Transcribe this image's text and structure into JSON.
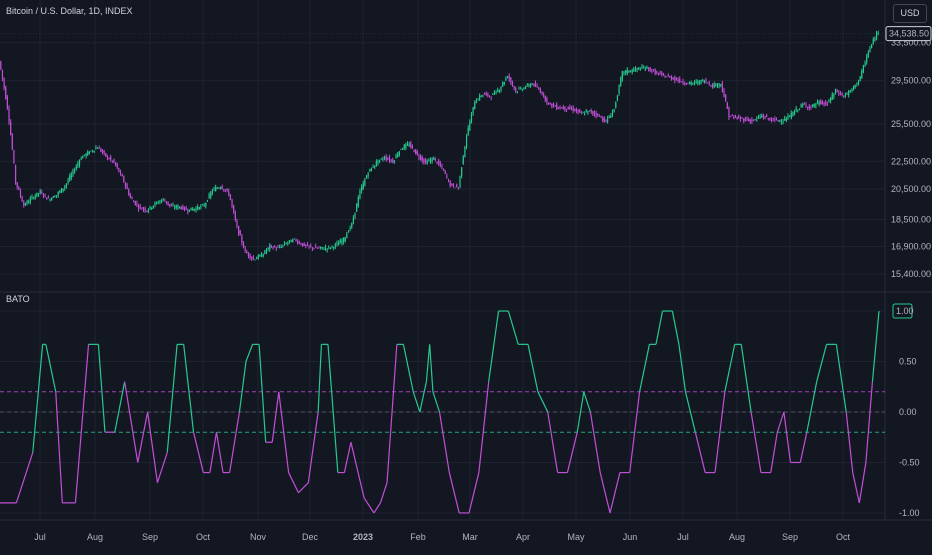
{
  "header": {
    "title": "Bitcoin / U.S. Dollar, 1D, INDEX",
    "currency_button": "USD"
  },
  "indicator": {
    "name": "BATO"
  },
  "colors": {
    "background": "#131722",
    "up": "#26c98f",
    "down": "#c24fd8",
    "grid": "#1f2330",
    "axis_text": "#b2b5be"
  },
  "chart_data": [
    {
      "type": "candlestick",
      "title": "Bitcoin / U.S. Dollar, 1D, INDEX",
      "y_axis_position": "right",
      "y_ticks": [
        "15,400.00",
        "16,900.00",
        "18,500.00",
        "20,500.00",
        "22,500.00",
        "25,500.00",
        "29,500.00",
        "33,500.00"
      ],
      "y_tick_values": [
        15400,
        16900,
        18500,
        20500,
        22500,
        25500,
        29500,
        33500
      ],
      "last_price_label": "34,538.50",
      "last_price": 34538.5,
      "x_labels": [
        "Jul",
        "Aug",
        "Sep",
        "Oct",
        "Nov",
        "Dec",
        "2023",
        "Feb",
        "Mar",
        "Apr",
        "May",
        "Jun",
        "Jul",
        "Aug",
        "Sep",
        "Oct"
      ],
      "grid": true,
      "series": [
        {
          "name": "close",
          "values": [
            [
              0,
              31500
            ],
            [
              5,
              27000
            ],
            [
              10,
              21000
            ],
            [
              15,
              19400
            ],
            [
              20,
              19900
            ],
            [
              25,
              20300
            ],
            [
              30,
              19800
            ],
            [
              35,
              20100
            ],
            [
              40,
              20700
            ],
            [
              45,
              21700
            ],
            [
              50,
              22800
            ],
            [
              55,
              23200
            ],
            [
              60,
              23600
            ],
            [
              65,
              22900
            ],
            [
              70,
              22400
            ],
            [
              75,
              21300
            ],
            [
              80,
              19900
            ],
            [
              85,
              19300
            ],
            [
              90,
              19100
            ],
            [
              95,
              19500
            ],
            [
              100,
              19800
            ],
            [
              105,
              19300
            ],
            [
              110,
              19300
            ],
            [
              115,
              19100
            ],
            [
              120,
              19200
            ],
            [
              125,
              19400
            ],
            [
              130,
              20400
            ],
            [
              135,
              20700
            ],
            [
              140,
              20200
            ],
            [
              145,
              18000
            ],
            [
              150,
              16600
            ],
            [
              155,
              16200
            ],
            [
              160,
              16400
            ],
            [
              165,
              16900
            ],
            [
              170,
              16800
            ],
            [
              175,
              17100
            ],
            [
              180,
              17300
            ],
            [
              185,
              17000
            ],
            [
              190,
              16850
            ],
            [
              195,
              16800
            ],
            [
              200,
              16800
            ],
            [
              205,
              16950
            ],
            [
              210,
              17300
            ],
            [
              215,
              18200
            ],
            [
              220,
              20300
            ],
            [
              225,
              21700
            ],
            [
              230,
              22400
            ],
            [
              235,
              22800
            ],
            [
              240,
              22500
            ],
            [
              245,
              23500
            ],
            [
              250,
              23800
            ],
            [
              255,
              23000
            ],
            [
              260,
              22400
            ],
            [
              265,
              22700
            ],
            [
              270,
              22000
            ],
            [
              275,
              20800
            ],
            [
              280,
              20600
            ],
            [
              285,
              24500
            ],
            [
              290,
              27500
            ],
            [
              295,
              28200
            ],
            [
              300,
              28000
            ],
            [
              305,
              28700
            ],
            [
              310,
              30000
            ],
            [
              315,
              28500
            ],
            [
              320,
              28800
            ],
            [
              325,
              29200
            ],
            [
              330,
              28500
            ],
            [
              335,
              27300
            ],
            [
              340,
              27000
            ],
            [
              345,
              26900
            ],
            [
              350,
              26800
            ],
            [
              355,
              26400
            ],
            [
              360,
              26600
            ],
            [
              365,
              26300
            ],
            [
              370,
              25700
            ],
            [
              375,
              26800
            ],
            [
              380,
              30300
            ],
            [
              385,
              30500
            ],
            [
              390,
              30700
            ],
            [
              395,
              30800
            ],
            [
              400,
              30300
            ],
            [
              405,
              30000
            ],
            [
              410,
              29800
            ],
            [
              415,
              29500
            ],
            [
              420,
              29200
            ],
            [
              425,
              29300
            ],
            [
              430,
              29500
            ],
            [
              435,
              29000
            ],
            [
              440,
              29200
            ],
            [
              445,
              26200
            ],
            [
              450,
              26000
            ],
            [
              455,
              25900
            ],
            [
              460,
              25800
            ],
            [
              465,
              26200
            ],
            [
              470,
              25900
            ],
            [
              475,
              25800
            ],
            [
              480,
              25900
            ],
            [
              485,
              26600
            ],
            [
              490,
              27200
            ],
            [
              495,
              27000
            ],
            [
              500,
              27400
            ],
            [
              505,
              27300
            ],
            [
              510,
              28500
            ],
            [
              515,
              28000
            ],
            [
              520,
              28600
            ],
            [
              525,
              29800
            ],
            [
              530,
              32500
            ],
            [
              535,
              34500
            ],
            [
              536,
              34538.5
            ]
          ]
        }
      ]
    },
    {
      "type": "line",
      "title": "BATO",
      "y_ticks": [
        "1.00",
        "0.50",
        "0.00",
        "-0.50",
        "-1.00"
      ],
      "y_tick_values": [
        1.0,
        0.5,
        0.0,
        -0.5,
        -1.0
      ],
      "ylim": [
        -1.05,
        1.05
      ],
      "last_value_label": "1.00",
      "last_value": 1.0,
      "levels": [
        0.2,
        0.0,
        -0.2
      ],
      "series": [
        {
          "name": "BATO",
          "values": [
            [
              0,
              -0.9
            ],
            [
              10,
              -0.9
            ],
            [
              20,
              -0.4
            ],
            [
              26,
              0.67
            ],
            [
              28,
              0.67
            ],
            [
              34,
              0.2
            ],
            [
              38,
              -0.9
            ],
            [
              46,
              -0.9
            ],
            [
              54,
              0.67
            ],
            [
              60,
              0.67
            ],
            [
              64,
              -0.2
            ],
            [
              70,
              -0.2
            ],
            [
              76,
              0.3
            ],
            [
              84,
              -0.5
            ],
            [
              90,
              0.0
            ],
            [
              96,
              -0.7
            ],
            [
              102,
              -0.4
            ],
            [
              108,
              0.67
            ],
            [
              112,
              0.67
            ],
            [
              118,
              -0.2
            ],
            [
              124,
              -0.6
            ],
            [
              128,
              -0.6
            ],
            [
              132,
              -0.2
            ],
            [
              136,
              -0.6
            ],
            [
              140,
              -0.6
            ],
            [
              146,
              0.0
            ],
            [
              150,
              0.5
            ],
            [
              154,
              0.67
            ],
            [
              158,
              0.67
            ],
            [
              162,
              -0.3
            ],
            [
              166,
              -0.3
            ],
            [
              170,
              0.2
            ],
            [
              176,
              -0.6
            ],
            [
              182,
              -0.8
            ],
            [
              188,
              -0.7
            ],
            [
              194,
              0.0
            ],
            [
              196,
              0.67
            ],
            [
              200,
              0.67
            ],
            [
              206,
              -0.6
            ],
            [
              210,
              -0.6
            ],
            [
              214,
              -0.3
            ],
            [
              222,
              -0.85
            ],
            [
              228,
              -1.0
            ],
            [
              232,
              -0.9
            ],
            [
              236,
              -0.7
            ],
            [
              242,
              0.67
            ],
            [
              246,
              0.67
            ],
            [
              252,
              0.2
            ],
            [
              256,
              0.0
            ],
            [
              260,
              0.3
            ],
            [
              262,
              0.67
            ],
            [
              264,
              0.2
            ],
            [
              268,
              0.0
            ],
            [
              274,
              -0.6
            ],
            [
              280,
              -1.0
            ],
            [
              286,
              -1.0
            ],
            [
              292,
              -0.6
            ],
            [
              298,
              0.3
            ],
            [
              304,
              1.0
            ],
            [
              310,
              1.0
            ],
            [
              316,
              0.67
            ],
            [
              322,
              0.67
            ],
            [
              328,
              0.2
            ],
            [
              334,
              0.0
            ],
            [
              340,
              -0.6
            ],
            [
              346,
              -0.6
            ],
            [
              352,
              -0.2
            ],
            [
              356,
              0.2
            ],
            [
              360,
              0.0
            ],
            [
              366,
              -0.6
            ],
            [
              372,
              -1.0
            ],
            [
              378,
              -0.6
            ],
            [
              384,
              -0.6
            ],
            [
              390,
              0.2
            ],
            [
              396,
              0.67
            ],
            [
              400,
              0.67
            ],
            [
              404,
              1.0
            ],
            [
              410,
              1.0
            ],
            [
              414,
              0.67
            ],
            [
              418,
              0.2
            ],
            [
              424,
              -0.2
            ],
            [
              430,
              -0.6
            ],
            [
              436,
              -0.6
            ],
            [
              442,
              0.2
            ],
            [
              448,
              0.67
            ],
            [
              452,
              0.67
            ],
            [
              458,
              0.0
            ],
            [
              464,
              -0.6
            ],
            [
              470,
              -0.6
            ],
            [
              474,
              -0.2
            ],
            [
              478,
              0.0
            ],
            [
              482,
              -0.5
            ],
            [
              488,
              -0.5
            ],
            [
              492,
              -0.2
            ],
            [
              498,
              0.3
            ],
            [
              504,
              0.67
            ],
            [
              510,
              0.67
            ],
            [
              516,
              0.0
            ],
            [
              520,
              -0.6
            ],
            [
              524,
              -0.9
            ],
            [
              528,
              -0.5
            ],
            [
              532,
              0.3
            ],
            [
              536,
              1.0
            ]
          ]
        }
      ]
    }
  ]
}
